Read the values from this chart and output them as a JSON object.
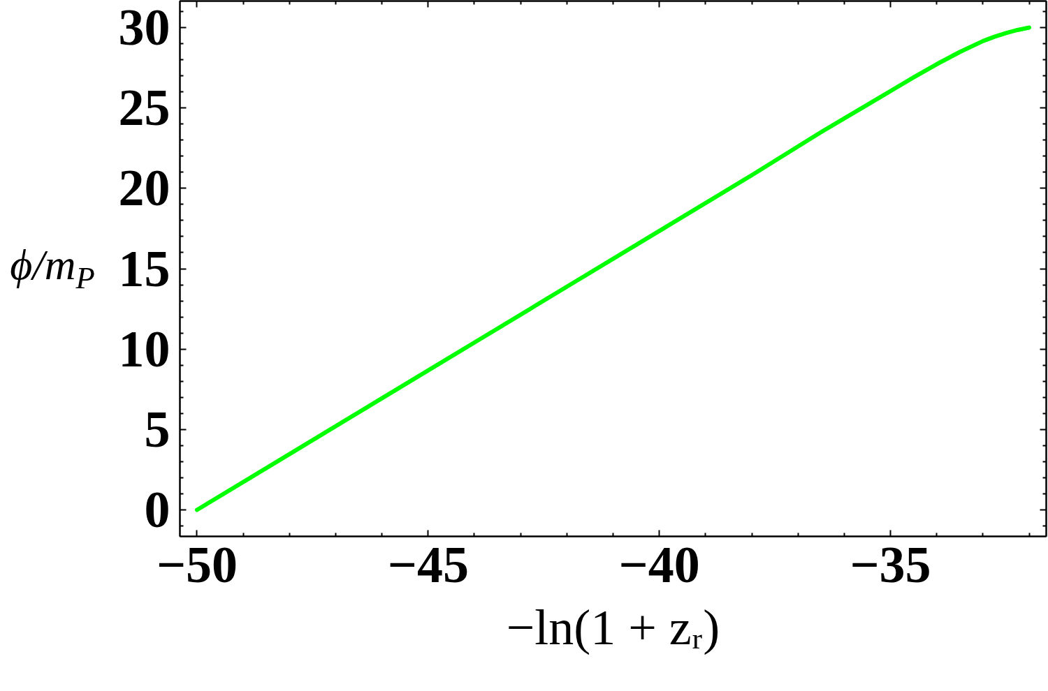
{
  "chart_data": {
    "type": "line",
    "xlabel": "−ln(1 + zᵣ)",
    "ylabel": "ϕ/m$_{P}$",
    "x": [
      -50,
      -48,
      -46,
      -44,
      -42,
      -40,
      -38,
      -36.5,
      -35.5,
      -35,
      -34.5,
      -34,
      -33.5,
      -33,
      -32.75,
      -32.5,
      -32.25,
      -32
    ],
    "series": [
      {
        "color": "#00ff00",
        "values": [
          0,
          3.47,
          6.94,
          10.41,
          13.88,
          17.35,
          20.82,
          23.5,
          25.2,
          26.05,
          26.9,
          27.72,
          28.48,
          29.16,
          29.43,
          29.66,
          29.85,
          30.0
        ]
      }
    ],
    "xlim": [
      -50.37,
      -31.63
    ],
    "ylim": [
      -1.65,
      31.65
    ],
    "xticks": [
      {
        "value": -50,
        "label": "−50"
      },
      {
        "value": -49,
        "label": null
      },
      {
        "value": -48,
        "label": null
      },
      {
        "value": -47,
        "label": null
      },
      {
        "value": -46,
        "label": null
      },
      {
        "value": -45,
        "label": "−45"
      },
      {
        "value": -44,
        "label": null
      },
      {
        "value": -43,
        "label": null
      },
      {
        "value": -42,
        "label": null
      },
      {
        "value": -41,
        "label": null
      },
      {
        "value": -40,
        "label": "−40"
      },
      {
        "value": -39,
        "label": null
      },
      {
        "value": -38,
        "label": null
      },
      {
        "value": -37,
        "label": null
      },
      {
        "value": -36,
        "label": null
      },
      {
        "value": -35,
        "label": "−35"
      },
      {
        "value": -34,
        "label": null
      },
      {
        "value": -33,
        "label": null
      },
      {
        "value": -32,
        "label": null
      }
    ],
    "yticks": [
      {
        "value": -1,
        "label": null
      },
      0,
      {
        "value": 1,
        "label": null
      },
      {
        "value": 2,
        "label": null
      },
      {
        "value": 3,
        "label": null
      },
      {
        "value": 4,
        "label": null
      },
      5,
      {
        "value": 6,
        "label": null
      },
      {
        "value": 7,
        "label": null
      },
      {
        "value": 8,
        "label": null
      },
      {
        "value": 9,
        "label": null
      },
      10,
      {
        "value": 11,
        "label": null
      },
      {
        "value": 12,
        "label": null
      },
      {
        "value": 13,
        "label": null
      },
      {
        "value": 14,
        "label": null
      },
      15,
      {
        "value": 16,
        "label": null
      },
      {
        "value": 17,
        "label": null
      },
      {
        "value": 18,
        "label": null
      },
      {
        "value": 19,
        "label": null
      },
      20,
      {
        "value": 21,
        "label": null
      },
      {
        "value": 22,
        "label": null
      },
      {
        "value": 23,
        "label": null
      },
      {
        "value": 24,
        "label": null
      },
      25,
      {
        "value": 26,
        "label": null
      },
      {
        "value": 27,
        "label": null
      },
      {
        "value": 28,
        "label": null
      },
      {
        "value": 29,
        "label": null
      },
      30,
      {
        "value": 31,
        "label": null
      }
    ]
  }
}
